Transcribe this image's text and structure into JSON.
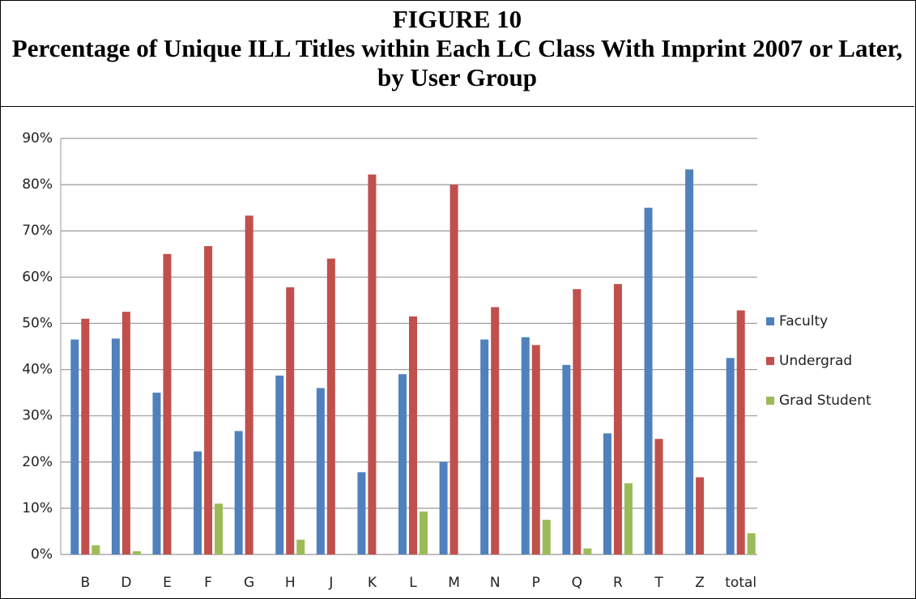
{
  "chart_data": {
    "type": "bar",
    "figure_label": "FIGURE 10",
    "title": "Percentage of Unique ILL Titles within Each LC Class With Imprint 2007 or Later, by User Group",
    "categories": [
      "B",
      "D",
      "E",
      "F",
      "G",
      "H",
      "J",
      "K",
      "L",
      "M",
      "N",
      "P",
      "Q",
      "R",
      "T",
      "Z",
      "total"
    ],
    "series": [
      {
        "name": "Faculty",
        "color": "#4f81bd",
        "values": [
          46.5,
          46.7,
          35,
          22.3,
          26.7,
          38.7,
          36,
          17.8,
          39,
          20,
          46.5,
          47,
          41,
          26.2,
          75,
          83.3,
          42.5
        ]
      },
      {
        "name": "Undergrad",
        "color": "#c0504d",
        "values": [
          51,
          52.5,
          65,
          66.7,
          73.3,
          57.8,
          64,
          82.2,
          51.5,
          80,
          53.5,
          45.3,
          57.4,
          58.5,
          25,
          16.7,
          52.8
        ]
      },
      {
        "name": "Grad Student",
        "color": "#9bbb59",
        "values": [
          2,
          0.7,
          0,
          11,
          0,
          3.2,
          0,
          0,
          9.3,
          0,
          0,
          7.5,
          1.3,
          15.4,
          0,
          0,
          4.6
        ]
      }
    ],
    "ylim": [
      0,
      90
    ],
    "yticks": [
      {
        "value": 0,
        "label": "0%"
      },
      {
        "value": 10,
        "label": "10%"
      },
      {
        "value": 20,
        "label": "20%"
      },
      {
        "value": 30,
        "label": "30%"
      },
      {
        "value": 40,
        "label": "40%"
      },
      {
        "value": 50,
        "label": "50%"
      },
      {
        "value": 60,
        "label": "60%"
      },
      {
        "value": 70,
        "label": "70%"
      },
      {
        "value": 80,
        "label": "80%"
      },
      {
        "value": 90,
        "label": "90%"
      }
    ],
    "grid": true,
    "legend": "right"
  }
}
